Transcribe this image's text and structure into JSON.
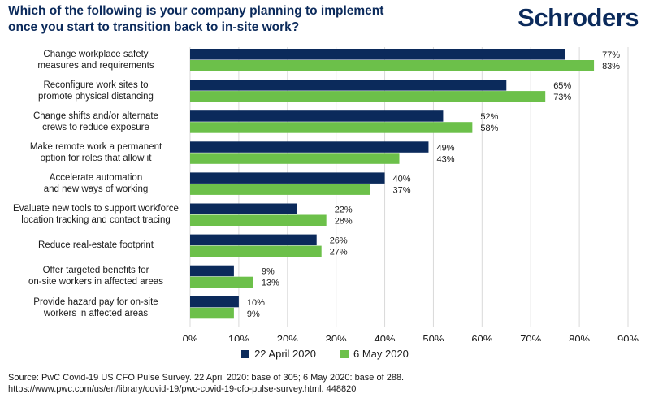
{
  "header": {
    "title_line1": "Which of the following is your company planning to implement",
    "title_line2": "once you start to transition back to in-site work?",
    "logo": "Schroders"
  },
  "chart_data": {
    "type": "bar",
    "orientation": "horizontal",
    "categories": [
      [
        "Change workplace safety",
        "measures and requirements"
      ],
      [
        "Reconfigure work sites to",
        "promote physical distancing"
      ],
      [
        "Change shifts and/or alternate",
        "crews to reduce exposure"
      ],
      [
        "Make remote work a permanent",
        "option for roles that allow it"
      ],
      [
        "Accelerate automation",
        "and new ways of working"
      ],
      [
        "Evaluate new tools to support workforce",
        "location tracking and contact tracing"
      ],
      [
        "Reduce real-estate footprint"
      ],
      [
        "Offer targeted benefits for",
        "on-site workers in affected areas"
      ],
      [
        "Provide hazard pay for on-site",
        "workers in affected areas"
      ]
    ],
    "series": [
      {
        "name": "22 April 2020",
        "color": "#0b2a5b",
        "values": [
          77,
          65,
          52,
          49,
          40,
          22,
          26,
          9,
          10
        ]
      },
      {
        "name": "6 May 2020",
        "color": "#6cc04a",
        "values": [
          83,
          73,
          58,
          43,
          37,
          28,
          27,
          13,
          9
        ]
      }
    ],
    "xlim": [
      0,
      90
    ],
    "xticks": [
      0,
      10,
      20,
      30,
      40,
      50,
      60,
      70,
      80,
      90
    ],
    "tick_suffix": "%",
    "label_suffix": "%",
    "grid": true,
    "legend_position": "bottom"
  },
  "footer": {
    "source_line1": "Source: PwC Covid-19 US CFO Pulse Survey. 22 April 2020: base of 305; 6 May 2020: base of 288.",
    "source_line2": "https://www.pwc.com/us/en/library/covid-19/pwc-covid-19-cfo-pulse-survey.html. 448820"
  }
}
